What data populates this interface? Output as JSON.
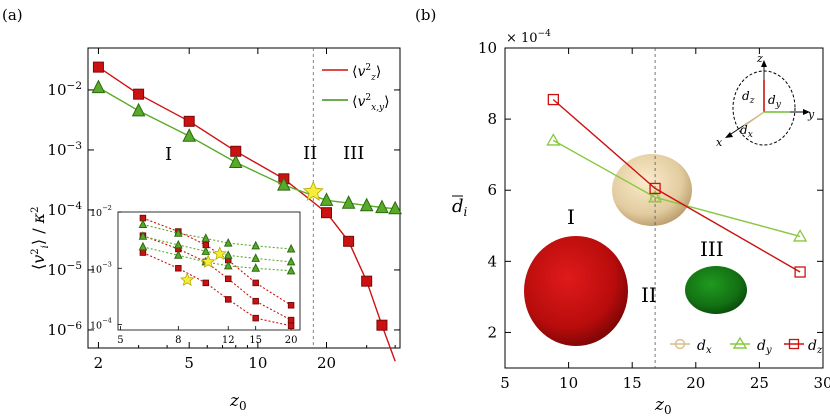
{
  "chart_data": [
    {
      "panel": "(a)",
      "type": "line",
      "xscale": "log",
      "yscale": "log",
      "xlabel": "z₀",
      "ylabel": "⟨v_i²⟩ / κ²",
      "xlim": [
        1.8,
        42
      ],
      "ylim": [
        5e-07,
        0.05
      ],
      "xticks": [
        "2",
        "5",
        "10",
        "20"
      ],
      "xtick_values": [
        2,
        5,
        10,
        20
      ],
      "yticks": [
        "10⁻²",
        "10⁻³",
        "10⁻⁴",
        "10⁻⁵",
        "10⁻⁶"
      ],
      "ytick_values": [
        0.01,
        0.001,
        0.0001,
        1e-05,
        1e-06
      ],
      "legend": [
        "⟨v_z²⟩",
        "⟨v_x,y²⟩"
      ],
      "legend_position": "top-right",
      "regions": [
        "I",
        "II",
        "III"
      ],
      "vline": 17.5,
      "crossing": {
        "x": 17.5,
        "y": 0.0002,
        "marker": "star"
      },
      "series": [
        {
          "name": "⟨v_z²⟩",
          "color": "#cc1111",
          "marker": "square",
          "x": [
            2,
            3,
            5,
            8,
            13,
            20,
            25,
            30,
            35,
            40
          ],
          "y": [
            0.024,
            0.0085,
            0.003,
            0.00095,
            0.00033,
            9e-05,
            3e-05,
            6.5e-06,
            1.2e-06,
            3e-07
          ]
        },
        {
          "name": "⟨v_x,y²⟩",
          "color": "#5aaa2a",
          "marker": "triangle",
          "x": [
            2,
            3,
            5,
            8,
            13,
            20,
            25,
            30,
            35,
            40
          ],
          "y": [
            0.011,
            0.0045,
            0.0017,
            0.00062,
            0.00026,
            0.000145,
            0.00013,
            0.000118,
            0.00011,
            0.000105
          ]
        }
      ],
      "inset": {
        "xscale": "log",
        "yscale": "log",
        "xticks": [
          "5",
          "8",
          "12",
          "15",
          "20"
        ],
        "xtick_values": [
          5,
          8,
          12,
          15,
          20
        ],
        "yticks": [
          "10⁻²",
          "10⁻³",
          "10⁻⁴"
        ],
        "ytick_values": [
          0.01,
          0.001,
          0.0001
        ],
        "series": [
          {
            "color": "#cc1111",
            "x": [
              6,
              8,
              10,
              12,
              15,
              20
            ],
            "y": [
              0.0078,
              0.0045,
              0.0026,
              0.0014,
              0.00055,
              0.00022
            ]
          },
          {
            "color": "#cc1111",
            "x": [
              6,
              8,
              10,
              12,
              15,
              20
            ],
            "y": [
              0.0038,
              0.0022,
              0.0013,
              0.00065,
              0.00026,
              0.00012
            ]
          },
          {
            "color": "#cc1111",
            "x": [
              6,
              8,
              10,
              12,
              15,
              20
            ],
            "y": [
              0.0019,
              0.001,
              0.00055,
              0.00028,
              0.00013,
              9.5e-05
            ]
          },
          {
            "color": "#5aaa2a",
            "x": [
              6,
              8,
              10,
              12,
              15,
              20
            ],
            "y": [
              0.006,
              0.0042,
              0.0034,
              0.0028,
              0.0025,
              0.0022
            ]
          },
          {
            "color": "#5aaa2a",
            "x": [
              6,
              8,
              10,
              12,
              15,
              20
            ],
            "y": [
              0.0037,
              0.0026,
              0.002,
              0.0017,
              0.0015,
              0.0013
            ]
          },
          {
            "color": "#5aaa2a",
            "x": [
              6,
              8,
              10,
              12,
              15,
              20
            ],
            "y": [
              0.0024,
              0.0017,
              0.0013,
              0.0011,
              0.001,
              0.0009
            ]
          }
        ],
        "stars": [
          {
            "x": 11.2,
            "y": 0.0018
          },
          {
            "x": 10.2,
            "y": 0.0013
          },
          {
            "x": 8.6,
            "y": 0.00062
          }
        ]
      }
    },
    {
      "panel": "(b)",
      "type": "line",
      "xlabel": "z₀",
      "ylabel": "d̄_i",
      "xlim": [
        5,
        30
      ],
      "ylim": [
        1,
        10
      ],
      "xticks": [
        "5",
        "10",
        "15",
        "20",
        "25",
        "30"
      ],
      "xtick_values": [
        5,
        10,
        15,
        20,
        25,
        30
      ],
      "yticks": [
        "2",
        "4",
        "6",
        "8",
        "10"
      ],
      "ytick_values": [
        2,
        4,
        6,
        8,
        10
      ],
      "yscale_label": "× 10⁻⁴",
      "vline": 16.8,
      "regions": [
        "I",
        "II",
        "III"
      ],
      "legend": [
        "d̄_x",
        "d̄_y",
        "d̄_z"
      ],
      "legend_position": "bottom-right",
      "axes_labels": [
        "z",
        "y",
        "x",
        "d̄_z",
        "d̄_y",
        "d̄_x"
      ],
      "series": [
        {
          "name": "d̄_x",
          "color": "#d9be8c",
          "marker": "circle",
          "x": [
            16.8
          ],
          "y": [
            5.8
          ]
        },
        {
          "name": "d̄_y",
          "color": "#88c840",
          "marker": "triangle",
          "x": [
            8.8,
            16.8,
            28.2
          ],
          "y": [
            7.4,
            5.8,
            4.7
          ]
        },
        {
          "name": "d̄_z",
          "color": "#cc1111",
          "marker": "square",
          "x": [
            8.8,
            16.8,
            28.2
          ],
          "y": [
            8.55,
            6.05,
            3.7
          ]
        }
      ]
    }
  ]
}
